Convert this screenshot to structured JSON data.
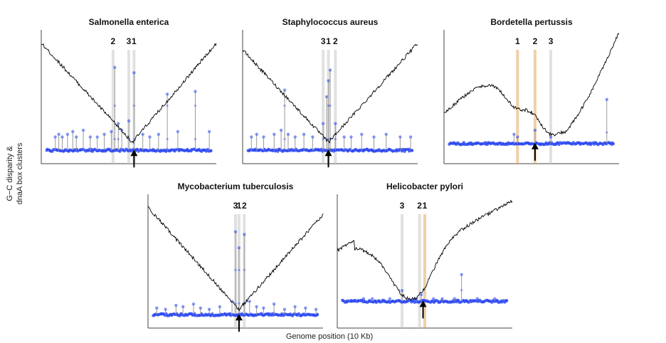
{
  "figure": {
    "ylabel_line1": "G−C disparity &",
    "ylabel_line2": "dnaA box clusters",
    "xlabel": "Genome position (10 Kb)"
  },
  "colors": {
    "curve": "#000000",
    "points": "#2a47f0",
    "stems": "#9a9a9a",
    "gray_band": "#c8c8c8",
    "orange_band": "#e8a860",
    "arrow": "#000000"
  },
  "chart_data": [
    {
      "type": "line",
      "title": "Salmonella enterica",
      "xlim": [
        0,
        100
      ],
      "ylim": [
        0,
        1
      ],
      "cluster_labels": [
        {
          "label": "2",
          "x": 41,
          "color": "gray"
        },
        {
          "label": "3",
          "x": 50,
          "color": "gray"
        },
        {
          "label": "1",
          "x": 53,
          "color": "gray"
        }
      ],
      "arrow_x": 53,
      "curve": {
        "shape": "v",
        "min_x": 52,
        "min_y": 0.16,
        "left_y": 0.9,
        "right_y": 0.9
      },
      "baseline_y": 0.1,
      "stems": [
        [
          8,
          0.2
        ],
        [
          10,
          0.22
        ],
        [
          12,
          0.2
        ],
        [
          15,
          0.22
        ],
        [
          18,
          0.24
        ],
        [
          20,
          0.2
        ],
        [
          24,
          0.25
        ],
        [
          28,
          0.2
        ],
        [
          32,
          0.2
        ],
        [
          36,
          0.22
        ],
        [
          40,
          0.24
        ],
        [
          42,
          0.72
        ],
        [
          44,
          0.3
        ],
        [
          46,
          0.25
        ],
        [
          50,
          0.32
        ],
        [
          53,
          0.68
        ],
        [
          58,
          0.22
        ],
        [
          62,
          0.2
        ],
        [
          67,
          0.22
        ],
        [
          72,
          0.52
        ],
        [
          78,
          0.24
        ],
        [
          88,
          0.54
        ],
        [
          96,
          0.24
        ]
      ]
    },
    {
      "type": "line",
      "title": "Staphylococcus aureus",
      "xlim": [
        0,
        100
      ],
      "ylim": [
        0,
        1
      ],
      "cluster_labels": [
        {
          "label": "3",
          "x": 46,
          "color": "gray"
        },
        {
          "label": "1",
          "x": 49,
          "color": "gray"
        },
        {
          "label": "2",
          "x": 53,
          "color": "gray"
        }
      ],
      "arrow_x": 49,
      "curve": {
        "shape": "v",
        "min_x": 49,
        "min_y": 0.16,
        "left_y": 0.85,
        "right_y": 0.9
      },
      "baseline_y": 0.1,
      "stems": [
        [
          5,
          0.2
        ],
        [
          8,
          0.22
        ],
        [
          12,
          0.2
        ],
        [
          18,
          0.22
        ],
        [
          22,
          0.25
        ],
        [
          24,
          0.55
        ],
        [
          26,
          0.22
        ],
        [
          30,
          0.2
        ],
        [
          35,
          0.22
        ],
        [
          40,
          0.2
        ],
        [
          46,
          0.3
        ],
        [
          48,
          0.5
        ],
        [
          49,
          0.62
        ],
        [
          50,
          0.7
        ],
        [
          53,
          0.3
        ],
        [
          58,
          0.2
        ],
        [
          62,
          0.2
        ],
        [
          68,
          0.22
        ],
        [
          75,
          0.2
        ],
        [
          82,
          0.22
        ],
        [
          90,
          0.2
        ],
        [
          96,
          0.2
        ]
      ]
    },
    {
      "type": "line",
      "title": "Bordetella pertussis",
      "xlim": [
        0,
        100
      ],
      "ylim": [
        0,
        1
      ],
      "cluster_labels": [
        {
          "label": "1",
          "x": 42,
          "color": "orange"
        },
        {
          "label": "2",
          "x": 52,
          "color": "orange"
        },
        {
          "label": "3",
          "x": 61,
          "color": "gray"
        }
      ],
      "arrow_x": 52,
      "curve": {
        "shape": "wave"
      },
      "baseline_y": 0.15,
      "stems": [
        [
          40,
          0.22
        ],
        [
          42,
          0.2
        ],
        [
          52,
          0.25
        ],
        [
          61,
          0.2
        ],
        [
          93,
          0.48
        ]
      ]
    },
    {
      "type": "line",
      "title": "Mycobacterium tuberculosis",
      "xlim": [
        0,
        100
      ],
      "ylim": [
        0,
        1
      ],
      "cluster_labels": [
        {
          "label": "3",
          "x": 50,
          "color": "gray"
        },
        {
          "label": "1",
          "x": 52,
          "color": "gray"
        },
        {
          "label": "2",
          "x": 55,
          "color": "gray"
        }
      ],
      "arrow_x": 52,
      "curve": {
        "shape": "v",
        "min_x": 52,
        "min_y": 0.14,
        "left_y": 0.9,
        "right_y": 0.85
      },
      "baseline_y": 0.1,
      "stems": [
        [
          5,
          0.15
        ],
        [
          10,
          0.14
        ],
        [
          16,
          0.17
        ],
        [
          20,
          0.16
        ],
        [
          26,
          0.18
        ],
        [
          30,
          0.15
        ],
        [
          35,
          0.14
        ],
        [
          41,
          0.16
        ],
        [
          48,
          0.2
        ],
        [
          50,
          0.72
        ],
        [
          52,
          0.6
        ],
        [
          55,
          0.7
        ],
        [
          58,
          0.2
        ],
        [
          62,
          0.16
        ],
        [
          66,
          0.15
        ],
        [
          72,
          0.18
        ],
        [
          78,
          0.14
        ],
        [
          84,
          0.16
        ],
        [
          90,
          0.15
        ],
        [
          96,
          0.14
        ]
      ]
    },
    {
      "type": "line",
      "title": "Helicobacter pylori",
      "xlim": [
        0,
        100
      ],
      "ylim": [
        0,
        1
      ],
      "cluster_labels": [
        {
          "label": "3",
          "x": 37,
          "color": "gray"
        },
        {
          "label": "2",
          "x": 47,
          "color": "gray"
        },
        {
          "label": "1",
          "x": 50,
          "color": "orange"
        }
      ],
      "arrow_x": 49,
      "curve": {
        "shape": "wave2"
      },
      "baseline_y": 0.2,
      "stems": [
        [
          15,
          0.22
        ],
        [
          20,
          0.22
        ],
        [
          30,
          0.22
        ],
        [
          37,
          0.28
        ],
        [
          45,
          0.22
        ],
        [
          48,
          0.25
        ],
        [
          55,
          0.22
        ],
        [
          60,
          0.22
        ],
        [
          67,
          0.22
        ],
        [
          71,
          0.4
        ],
        [
          80,
          0.22
        ],
        [
          90,
          0.22
        ]
      ]
    }
  ]
}
